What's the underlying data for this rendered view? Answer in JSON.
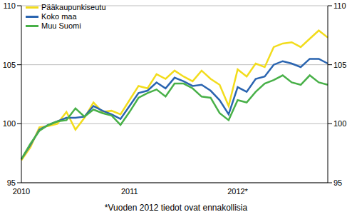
{
  "chart_data": {
    "type": "line",
    "note": "*Vuoden 2012 tiedot ovat ennakollisia",
    "categories": [
      "2010",
      null,
      null,
      null,
      null,
      null,
      null,
      null,
      null,
      null,
      null,
      null,
      "2011",
      null,
      null,
      null,
      null,
      null,
      null,
      null,
      null,
      null,
      null,
      null,
      "2012*",
      null,
      null,
      null,
      null,
      null,
      null,
      null,
      null,
      null,
      null
    ],
    "series": [
      {
        "name": "Pääkaupunkiseutu",
        "color": "#f2dc1c",
        "values": [
          96.9,
          98.0,
          99.7,
          99.8,
          100.0,
          101.0,
          99.5,
          100.5,
          101.8,
          101.0,
          101.1,
          100.8,
          102.0,
          103.2,
          103.0,
          104.2,
          103.8,
          104.5,
          104.0,
          103.6,
          104.5,
          103.8,
          103.3,
          101.5,
          104.6,
          104.0,
          105.1,
          104.8,
          106.5,
          106.8,
          106.9,
          106.5,
          107.2,
          107.9,
          107.3
        ]
      },
      {
        "name": "Koko maa",
        "color": "#2a64b0",
        "values": [
          97.0,
          98.2,
          99.5,
          99.9,
          100.2,
          100.5,
          100.5,
          100.6,
          101.5,
          101.1,
          100.8,
          100.4,
          101.5,
          102.6,
          102.8,
          103.5,
          103.0,
          103.9,
          103.6,
          103.2,
          103.3,
          102.8,
          102.0,
          100.8,
          103.1,
          102.7,
          103.8,
          104.0,
          105.0,
          105.3,
          105.1,
          104.8,
          105.5,
          105.5,
          105.1
        ]
      },
      {
        "name": "Muu Suomi",
        "color": "#48b048",
        "values": [
          97.0,
          98.3,
          99.4,
          99.9,
          100.2,
          100.3,
          101.3,
          100.6,
          101.2,
          100.9,
          100.7,
          99.9,
          101.0,
          102.2,
          102.6,
          102.9,
          102.3,
          103.4,
          103.4,
          103.0,
          102.3,
          102.2,
          100.9,
          100.3,
          102.0,
          101.8,
          102.7,
          103.4,
          103.7,
          104.1,
          103.5,
          103.3,
          104.1,
          103.5,
          103.3
        ]
      }
    ],
    "ylim": [
      95,
      110
    ],
    "yticks": [
      95,
      100,
      105,
      110
    ],
    "y2lim": [
      95,
      110
    ],
    "y2ticks": [
      95,
      100,
      105,
      110
    ],
    "grid": true,
    "legend": "top-left"
  }
}
